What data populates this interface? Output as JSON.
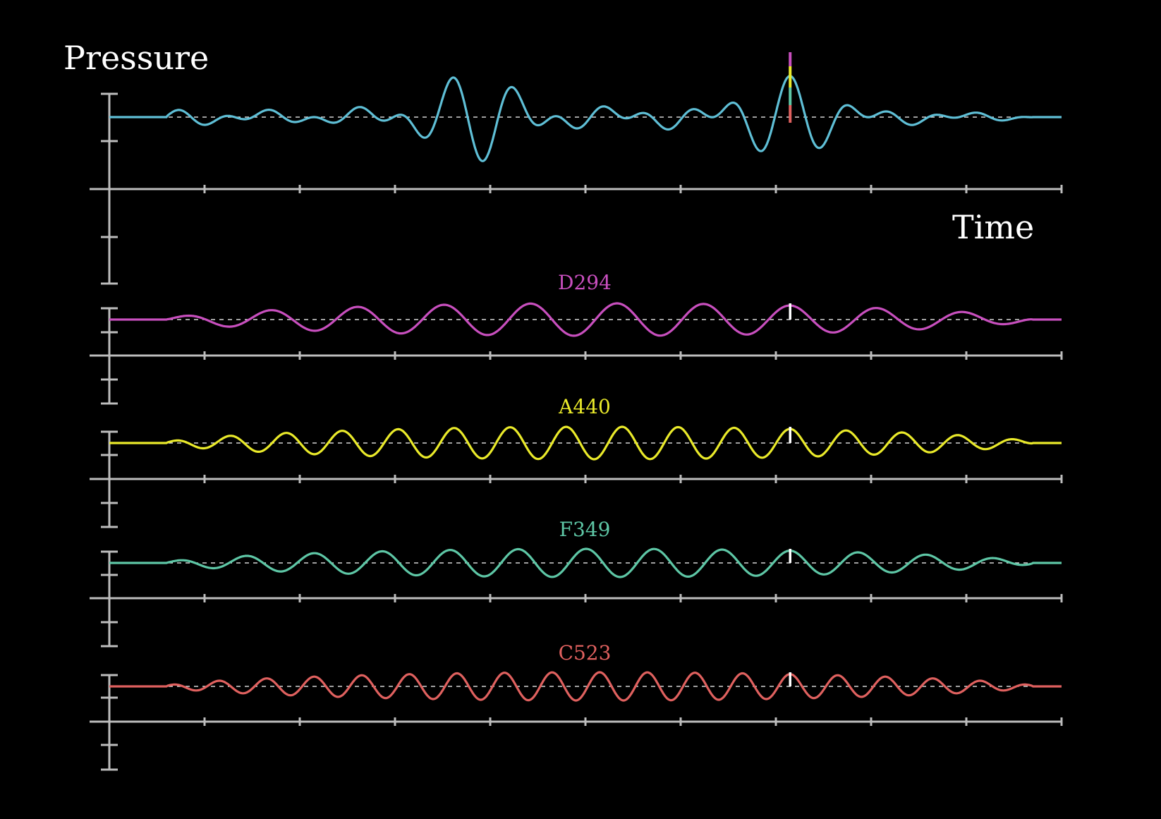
{
  "chart_data": {
    "type": "line",
    "ylabel": "Pressure",
    "xlabel": "Time",
    "grid": false,
    "marker_time": 7.15,
    "time_range": [
      0,
      10
    ],
    "ticks": [
      0,
      1,
      2,
      3,
      4,
      5,
      6,
      7,
      8,
      9,
      10
    ],
    "panels": [
      {
        "name": "",
        "color": "#5fbfd6",
        "series_label_shown": false,
        "components": [
          "D294",
          "A440",
          "F349",
          "C523"
        ],
        "description_free": true
      },
      {
        "name": "D294",
        "color": "#c84fbe",
        "cycles_visible": 11,
        "amplitude": 1.0
      },
      {
        "name": "A440",
        "color": "#eaea2a",
        "cycles_visible": 17,
        "amplitude": 1.0
      },
      {
        "name": "F349",
        "color": "#5ec7a6",
        "cycles_visible": 14,
        "amplitude": 1.0
      },
      {
        "name": "C523",
        "color": "#e0615f",
        "cycles_visible": 20,
        "amplitude": 1.0
      }
    ]
  }
}
